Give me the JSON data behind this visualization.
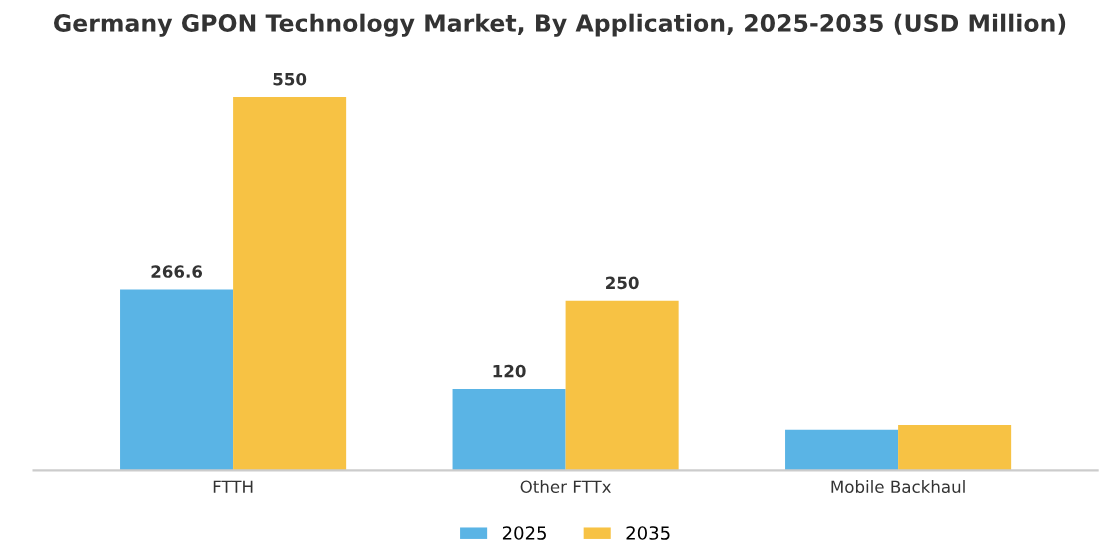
{
  "chart_data": {
    "type": "bar",
    "title": "Germany GPON Technology Market, By Application, 2025-2035 (USD Million)",
    "categories": [
      "FTTH",
      "Other FTTx",
      "Mobile Backhaul"
    ],
    "series": [
      {
        "name": "2025",
        "color": "#5ab4e5",
        "values": [
          266.6,
          120,
          60
        ],
        "value_labels": [
          "266.6",
          "120",
          null
        ]
      },
      {
        "name": "2035",
        "color": "#f7c244",
        "values": [
          550,
          250,
          67
        ],
        "value_labels": [
          "550",
          "250",
          null
        ]
      }
    ],
    "legend": "bottom",
    "grid": false
  }
}
